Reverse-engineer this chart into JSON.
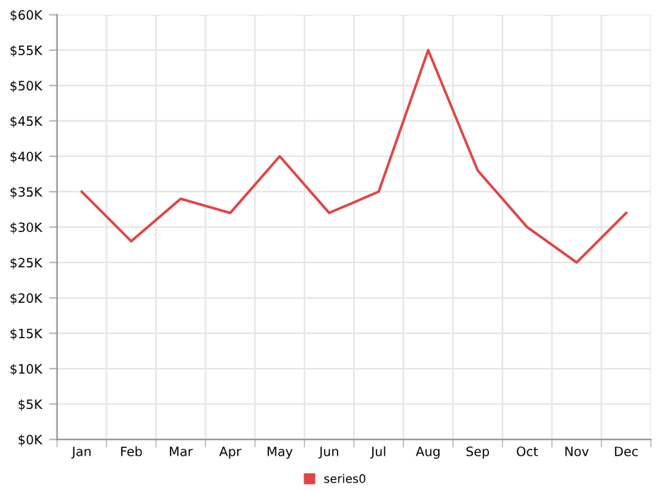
{
  "chart_data": {
    "type": "line",
    "categories": [
      "Jan",
      "Feb",
      "Mar",
      "Apr",
      "May",
      "Jun",
      "Jul",
      "Aug",
      "Sep",
      "Oct",
      "Nov",
      "Dec"
    ],
    "series": [
      {
        "name": "series0",
        "color": "#e04545",
        "values": [
          35,
          28,
          34,
          32,
          40,
          32,
          35,
          55,
          38,
          30,
          25,
          32
        ]
      }
    ],
    "ylim": [
      0,
      60
    ],
    "yticks": [
      {
        "value": 0,
        "label": "$0K"
      },
      {
        "value": 5,
        "label": "$5K"
      },
      {
        "value": 10,
        "label": "$10K"
      },
      {
        "value": 15,
        "label": "$15K"
      },
      {
        "value": 20,
        "label": "$20K"
      },
      {
        "value": 25,
        "label": "$25K"
      },
      {
        "value": 30,
        "label": "$30K"
      },
      {
        "value": 35,
        "label": "$35K"
      },
      {
        "value": 40,
        "label": "$40K"
      },
      {
        "value": 45,
        "label": "$45K"
      },
      {
        "value": 50,
        "label": "$50K"
      },
      {
        "value": 55,
        "label": "$55K"
      },
      {
        "value": 60,
        "label": "$60K"
      }
    ],
    "grid": true,
    "legend": "bottom",
    "marker": "none",
    "line_style": "solid"
  }
}
